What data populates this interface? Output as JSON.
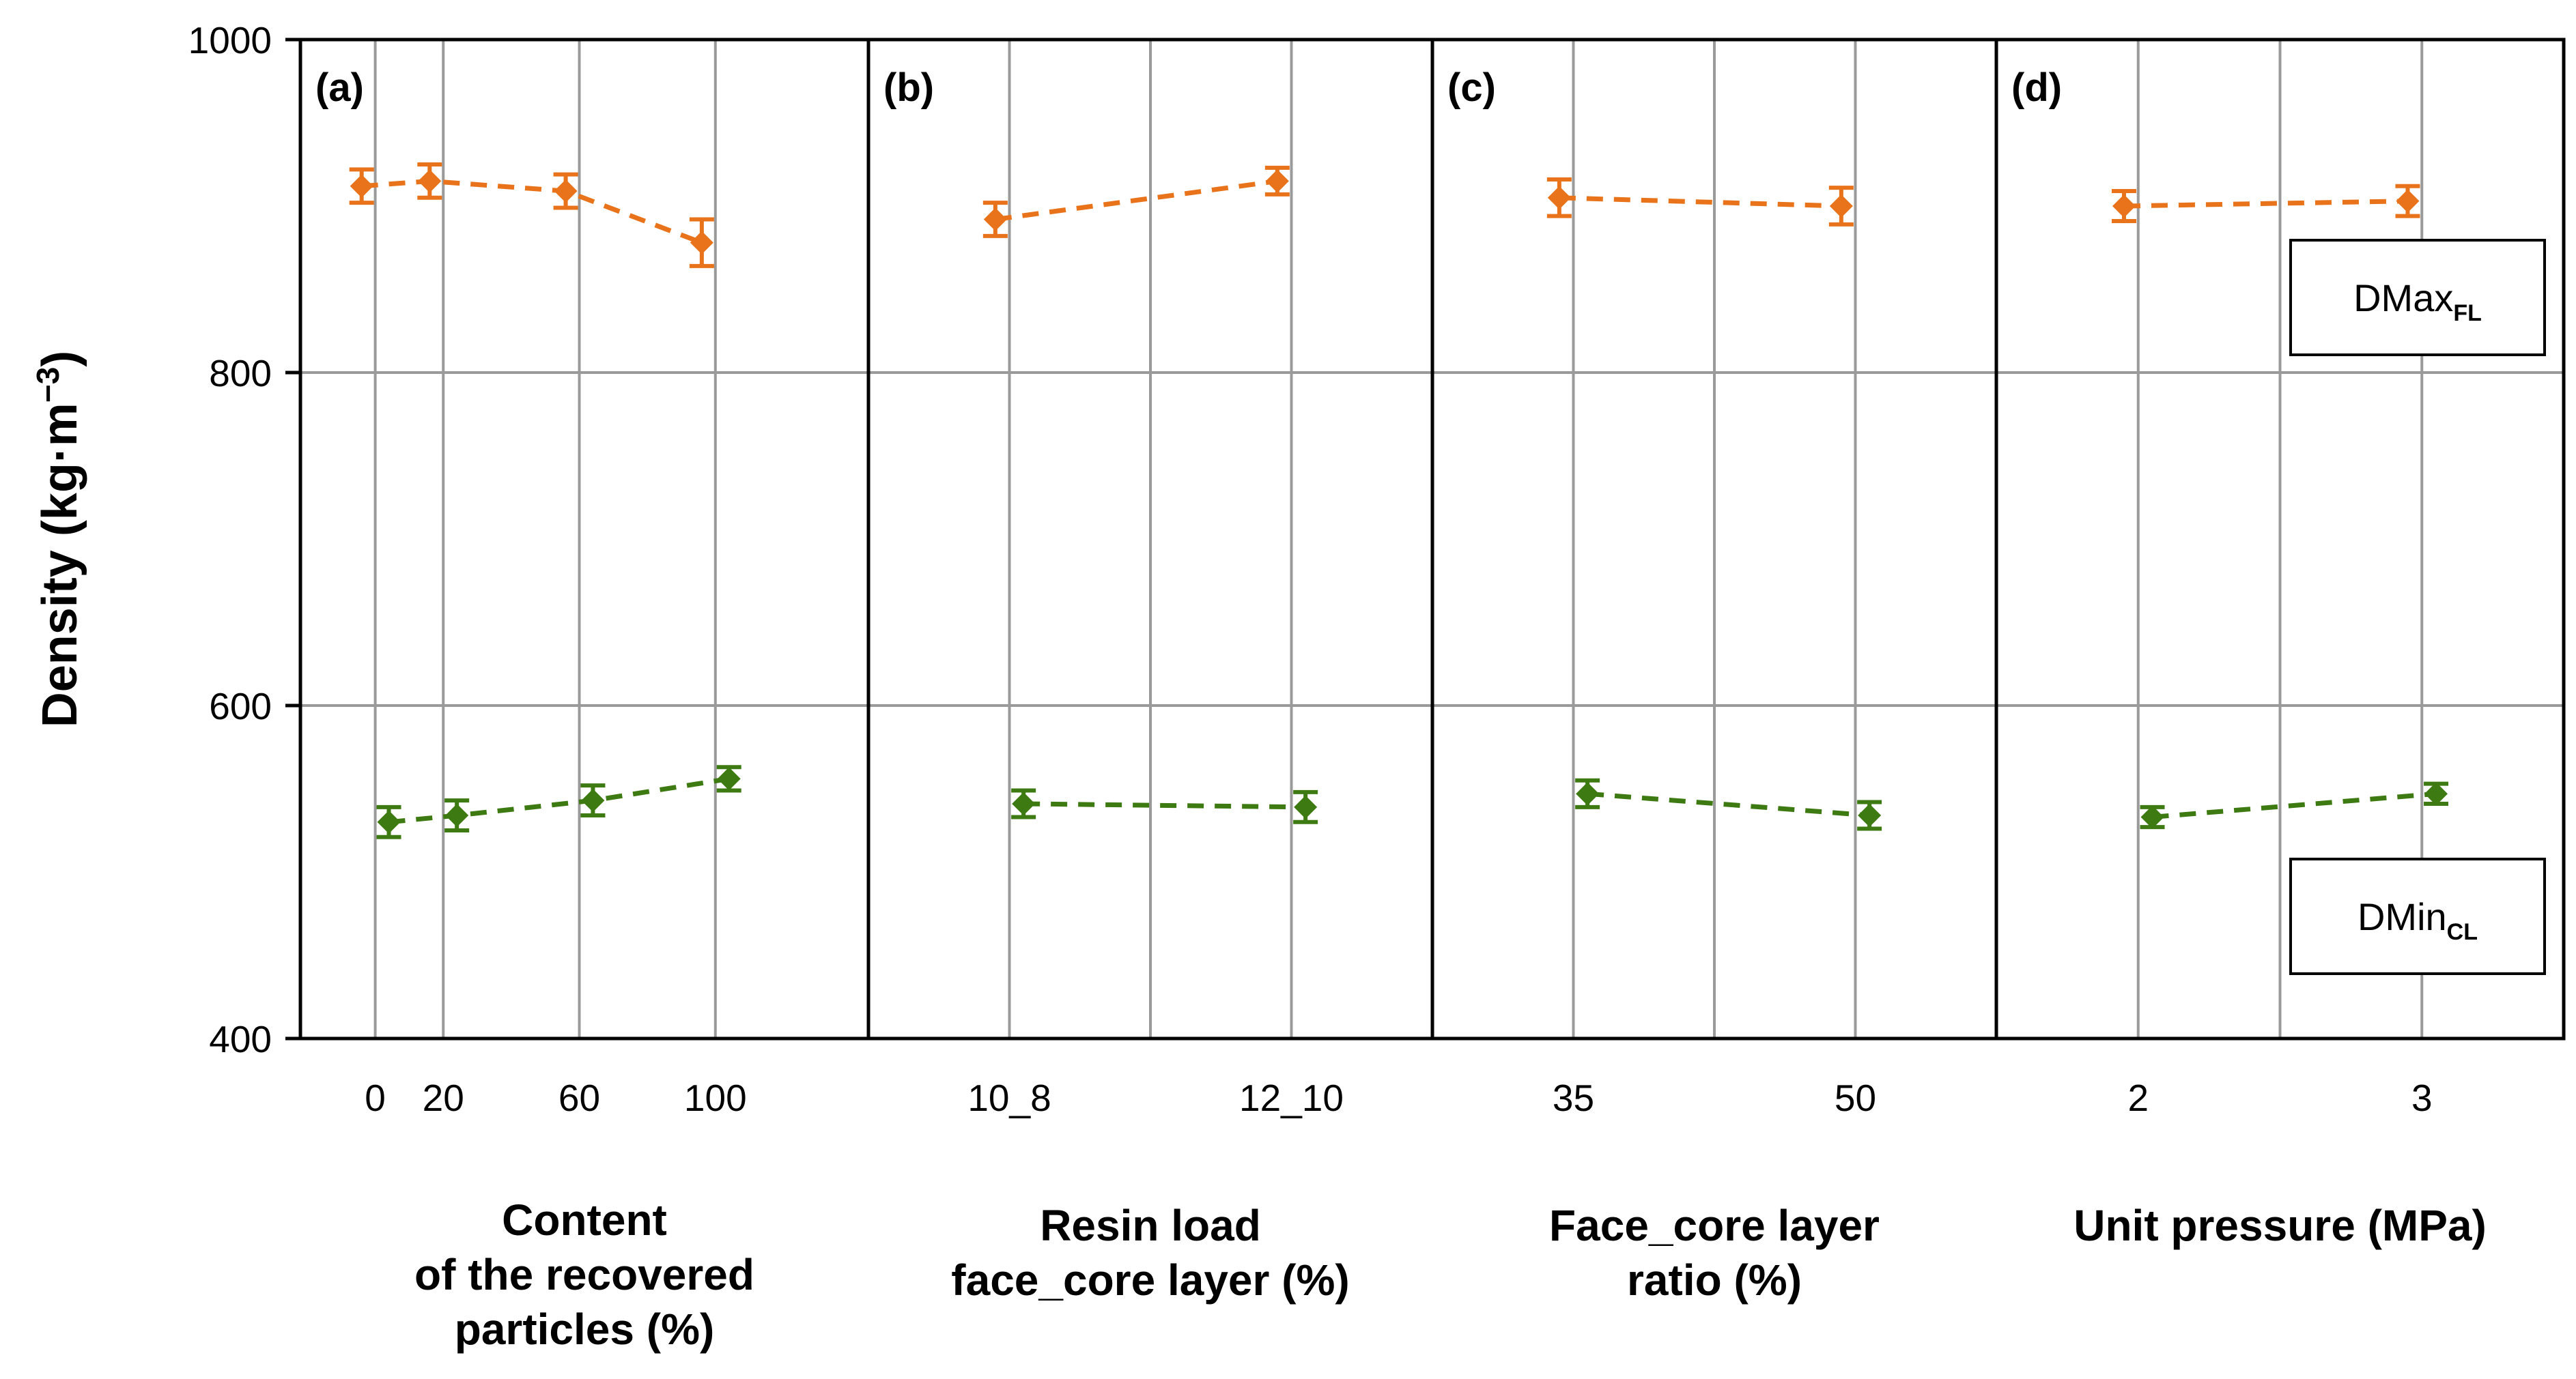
{
  "chart_data": {
    "type": "line",
    "ylabel": "Density (kg·m",
    "ylabel_sup": "−3",
    "ylabel_close": ")",
    "ylim": [
      400,
      1000
    ],
    "yticks": [
      400,
      600,
      800,
      1000
    ],
    "grid": true,
    "series_colors": {
      "DMax": "#E8731A",
      "DMin": "#3E7A12"
    },
    "legend": [
      {
        "main": "DMax",
        "sub": "FL",
        "series": "DMax"
      },
      {
        "main": "DMin",
        "sub": "CL",
        "series": "DMin"
      }
    ],
    "panels": [
      {
        "label": "(a)",
        "xlabel": [
          "Content",
          "of the recovered",
          "particles (%)"
        ],
        "categories": [
          "0",
          "20",
          "60",
          "100"
        ],
        "x_values": [
          0,
          20,
          60,
          100
        ],
        "x_range": [
          -22,
          145
        ],
        "series": [
          {
            "key": "DMax",
            "x": [
              -4,
              16,
              56,
              96
            ],
            "y": [
              912,
              915,
              909,
              878
            ],
            "err": [
              10,
              10,
              10,
              14
            ]
          },
          {
            "key": "DMin",
            "x": [
              4,
              24,
              64,
              104
            ],
            "y": [
              530,
              534,
              543,
              556
            ],
            "err": [
              9,
              9,
              9,
              7
            ]
          }
        ]
      },
      {
        "label": "(b)",
        "xlabel": [
          "Resin load",
          "face_core layer (%)"
        ],
        "categories": [
          "10_8",
          "12_10"
        ],
        "x_values": [
          1,
          2
        ],
        "x_range": [
          0.5,
          2.5
        ],
        "series": [
          {
            "key": "DMax",
            "x": [
              0.95,
              1.95
            ],
            "y": [
              892,
              915
            ],
            "err": [
              10,
              8
            ]
          },
          {
            "key": "DMin",
            "x": [
              1.05,
              2.05
            ],
            "y": [
              541,
              539
            ],
            "err": [
              8,
              9
            ]
          }
        ]
      },
      {
        "label": "(c)",
        "xlabel": [
          "Face_core layer",
          "ratio (%)"
        ],
        "categories": [
          "35",
          "50"
        ],
        "x_values": [
          1,
          2
        ],
        "x_range": [
          0.5,
          2.5
        ],
        "series": [
          {
            "key": "DMax",
            "x": [
              0.95,
              1.95
            ],
            "y": [
              905,
              900
            ],
            "err": [
              11,
              11
            ]
          },
          {
            "key": "DMin",
            "x": [
              1.05,
              2.05
            ],
            "y": [
              547,
              534
            ],
            "err": [
              8,
              8
            ]
          }
        ]
      },
      {
        "label": "(d)",
        "xlabel": [
          "Unit pressure (MPa)"
        ],
        "categories": [
          "2",
          "3"
        ],
        "x_values": [
          1,
          2
        ],
        "x_range": [
          0.5,
          2.5
        ],
        "series": [
          {
            "key": "DMax",
            "x": [
              0.95,
              1.95
            ],
            "y": [
              900,
              903
            ],
            "err": [
              9,
              9
            ]
          },
          {
            "key": "DMin",
            "x": [
              1.05,
              2.05
            ],
            "y": [
              533,
              547
            ],
            "err": [
              6,
              6
            ]
          }
        ]
      }
    ]
  }
}
